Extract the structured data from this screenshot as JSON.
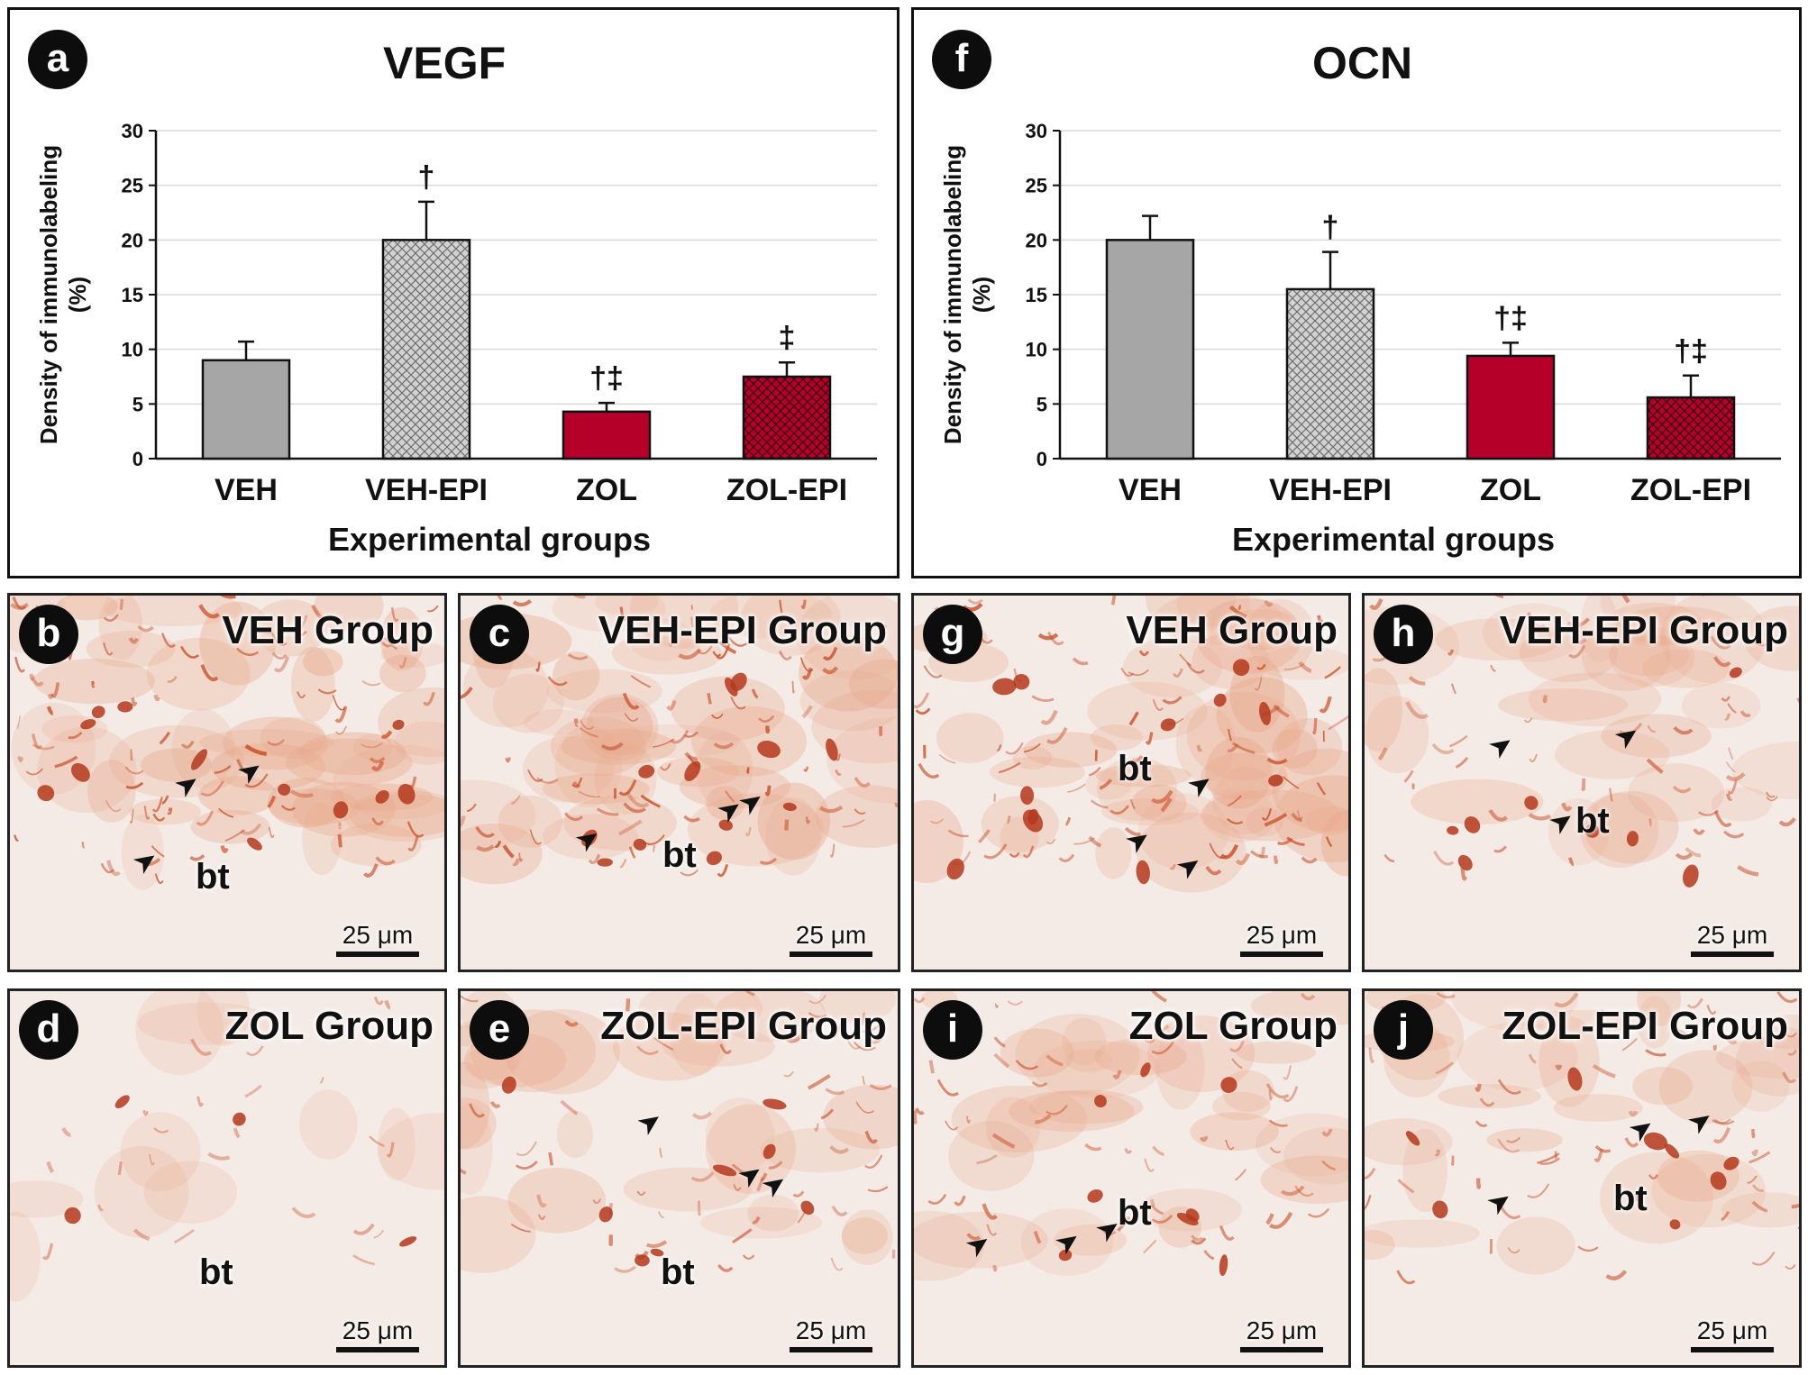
{
  "colors": {
    "veh": "#a6a6a6",
    "veh_epi": "#c8c8c8",
    "zol": "#b5002a",
    "zol_epi": "#b5002a",
    "tissue_bg": "#f4ebe6",
    "stain": "#c8502c"
  },
  "chart_data": [
    {
      "type": "bar",
      "panel_letter": "a",
      "title": "VEGF",
      "categories": [
        "VEH",
        "VEH-EPI",
        "ZOL",
        "ZOL-EPI"
      ],
      "values": [
        9.0,
        20.0,
        4.3,
        7.5
      ],
      "errors": [
        1.7,
        3.5,
        0.8,
        1.3
      ],
      "markers": [
        "",
        "†",
        "†‡",
        "‡"
      ],
      "patterns": [
        "solid",
        "crosshatch",
        "solid",
        "crosshatch"
      ],
      "ylabel_line1": "Density of immunolabeling",
      "ylabel_line2": "(%)",
      "xlabel": "Experimental groups",
      "ylim": [
        0,
        30
      ],
      "yticks": [
        0,
        5,
        10,
        15,
        20,
        25,
        30
      ],
      "grid": true
    },
    {
      "type": "bar",
      "panel_letter": "f",
      "title": "OCN",
      "categories": [
        "VEH",
        "VEH-EPI",
        "ZOL",
        "ZOL-EPI"
      ],
      "values": [
        20.0,
        15.5,
        9.4,
        5.6
      ],
      "errors": [
        2.2,
        3.4,
        1.2,
        2.0
      ],
      "markers": [
        "",
        "†",
        "†‡",
        "†‡"
      ],
      "patterns": [
        "solid",
        "crosshatch",
        "solid",
        "crosshatch"
      ],
      "ylabel_line1": "Density of immunolabeling",
      "ylabel_line2": "(%)",
      "xlabel": "Experimental groups",
      "ylim": [
        0,
        30
      ],
      "yticks": [
        0,
        5,
        10,
        15,
        20,
        25,
        30
      ],
      "grid": true
    }
  ],
  "micrographs": [
    {
      "letter": "b",
      "group": "VEH Group",
      "bt": "bt",
      "scale": "25 μm",
      "stain": "high",
      "seed": 11
    },
    {
      "letter": "c",
      "group": "VEH-EPI Group",
      "bt": "bt",
      "scale": "25 μm",
      "stain": "high",
      "seed": 23
    },
    {
      "letter": "g",
      "group": "VEH Group",
      "bt": "bt",
      "scale": "25 μm",
      "stain": "high",
      "seed": 37
    },
    {
      "letter": "h",
      "group": "VEH-EPI Group",
      "bt": "bt",
      "scale": "25 μm",
      "stain": "medium",
      "seed": 41
    },
    {
      "letter": "d",
      "group": "ZOL Group",
      "bt": "bt",
      "scale": "25 μm",
      "stain": "low",
      "seed": 53
    },
    {
      "letter": "e",
      "group": "ZOL-EPI Group",
      "bt": "bt",
      "scale": "25 μm",
      "stain": "medium",
      "seed": 67
    },
    {
      "letter": "i",
      "group": "ZOL Group",
      "bt": "bt",
      "scale": "25 μm",
      "stain": "medium",
      "seed": 71
    },
    {
      "letter": "j",
      "group": "ZOL-EPI Group",
      "bt": "bt",
      "scale": "25 μm",
      "stain": "medium",
      "seed": 83
    }
  ]
}
